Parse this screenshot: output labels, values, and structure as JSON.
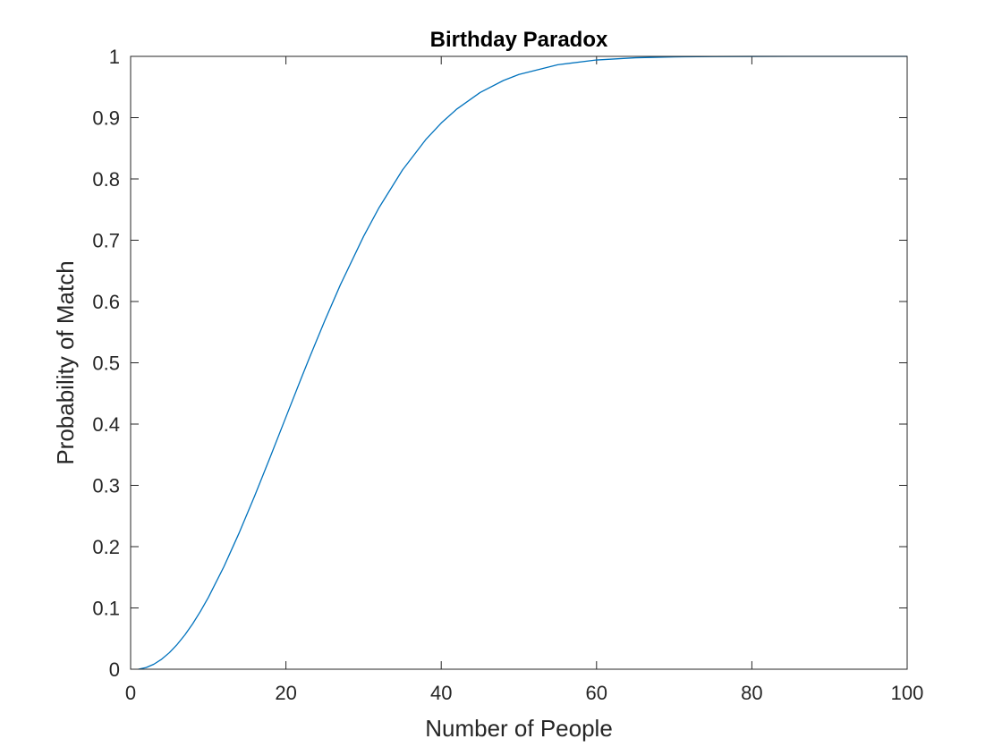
{
  "chart_data": {
    "type": "line",
    "title": "Birthday Paradox",
    "xlabel": "Number of People",
    "ylabel": "Probability of Match",
    "xlim": [
      0,
      100
    ],
    "ylim": [
      0,
      1
    ],
    "xticks": [
      0,
      20,
      40,
      60,
      80,
      100
    ],
    "xtick_labels": [
      "0",
      "20",
      "40",
      "60",
      "80",
      "100"
    ],
    "yticks": [
      0,
      0.1,
      0.2,
      0.3,
      0.4,
      0.5,
      0.6,
      0.7,
      0.8,
      0.9,
      1
    ],
    "ytick_labels": [
      "0",
      "0.1",
      "0.2",
      "0.3",
      "0.4",
      "0.5",
      "0.6",
      "0.7",
      "0.8",
      "0.9",
      "1"
    ],
    "grid": false,
    "box": true,
    "series": [
      {
        "color": "#0072BD",
        "x": [
          1,
          2,
          3,
          4,
          5,
          6,
          7,
          8,
          9,
          10,
          12,
          14,
          16,
          18,
          20,
          22,
          23,
          25,
          27,
          30,
          32,
          35,
          38,
          40,
          42,
          45,
          48,
          50,
          55,
          60,
          65,
          70,
          75,
          80,
          85,
          90,
          95,
          100
        ],
        "y": [
          0,
          0.0027,
          0.0082,
          0.0164,
          0.0271,
          0.0405,
          0.0562,
          0.0743,
          0.0946,
          0.1169,
          0.167,
          0.2231,
          0.2836,
          0.3469,
          0.4114,
          0.4757,
          0.5073,
          0.5687,
          0.6269,
          0.7063,
          0.7533,
          0.8144,
          0.8641,
          0.8912,
          0.914,
          0.941,
          0.9606,
          0.9704,
          0.9863,
          0.9941,
          0.9977,
          0.9992,
          0.9997,
          0.9999,
          1.0,
          1.0,
          1.0,
          1.0
        ]
      }
    ]
  }
}
